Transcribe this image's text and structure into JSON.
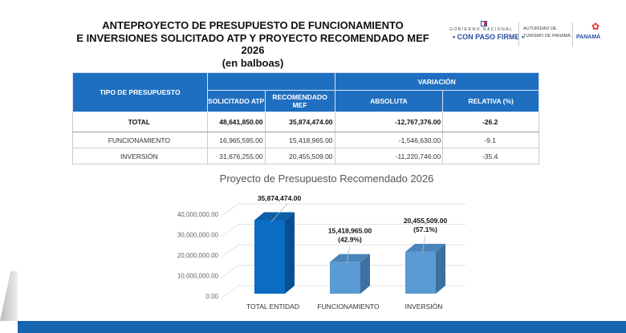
{
  "header": {
    "title_lines": [
      "ANTEPROYECTO DE PRESUPUESTO DE FUNCIONAMIENTO",
      "E INVERSIONES SOLICITADO ATP Y PROYECTO RECOMENDADO MEF 2026",
      "(en balboas)"
    ]
  },
  "logos": {
    "gobierno": "GOBIERNO NACIONAL",
    "slogan": "• CON PASO FIRME •",
    "autoridad": [
      "AUTORIDAD DE",
      "TURISMO DE PANAMÁ"
    ],
    "panama": "PANAMÁ"
  },
  "table": {
    "headers": {
      "tipo": "TIPO DE PRESUPUESTO",
      "variacion": "VARIACIÓN",
      "solicitado": "SOLICITADO ATP",
      "recomendado": "RECOMENDADO MEF",
      "absoluta": "ABSOLUTA",
      "relativa": "RELATIVA (%)"
    },
    "rows": [
      {
        "tipo": "TOTAL",
        "solicitado": "48,641,850.00",
        "recomendado": "35,874,474.00",
        "absoluta": "-12,767,376.00",
        "relativa": "-26.2"
      },
      {
        "tipo": "FUNCIONAMIENTO",
        "solicitado": "16,965,595.00",
        "recomendado": "15,418,965.00",
        "absoluta": "-1,546,630.00",
        "relativa": "-9.1"
      },
      {
        "tipo": "INVERSIÓN",
        "solicitado": "31,676,255.00",
        "recomendado": "20,455,509.00",
        "absoluta": "-11,220,746.00",
        "relativa": "-35.4"
      }
    ]
  },
  "chart_data": {
    "type": "bar",
    "title": "Proyecto de Presupuesto Recomendado 2026",
    "categories": [
      "TOTAL ENTIDAD",
      "FUNCIONAMIENTO",
      "INVERSIÓN"
    ],
    "values": [
      35874474,
      15418965,
      20455509
    ],
    "data_labels": [
      [
        "35,874,474.00"
      ],
      [
        "15,418,965.00",
        "(42.9%)"
      ],
      [
        "20,455,509.00",
        "(57.1%)"
      ]
    ],
    "yticks": [
      "0.00",
      "10,000,000.00",
      "20,000,000.00",
      "30,000,000.00",
      "40,000,000.00"
    ],
    "ylim": [
      0,
      40000000
    ],
    "grid": true,
    "style": "3d",
    "colors": [
      "#0a6cc2",
      "#5b9bd5",
      "#5b9bd5"
    ]
  }
}
